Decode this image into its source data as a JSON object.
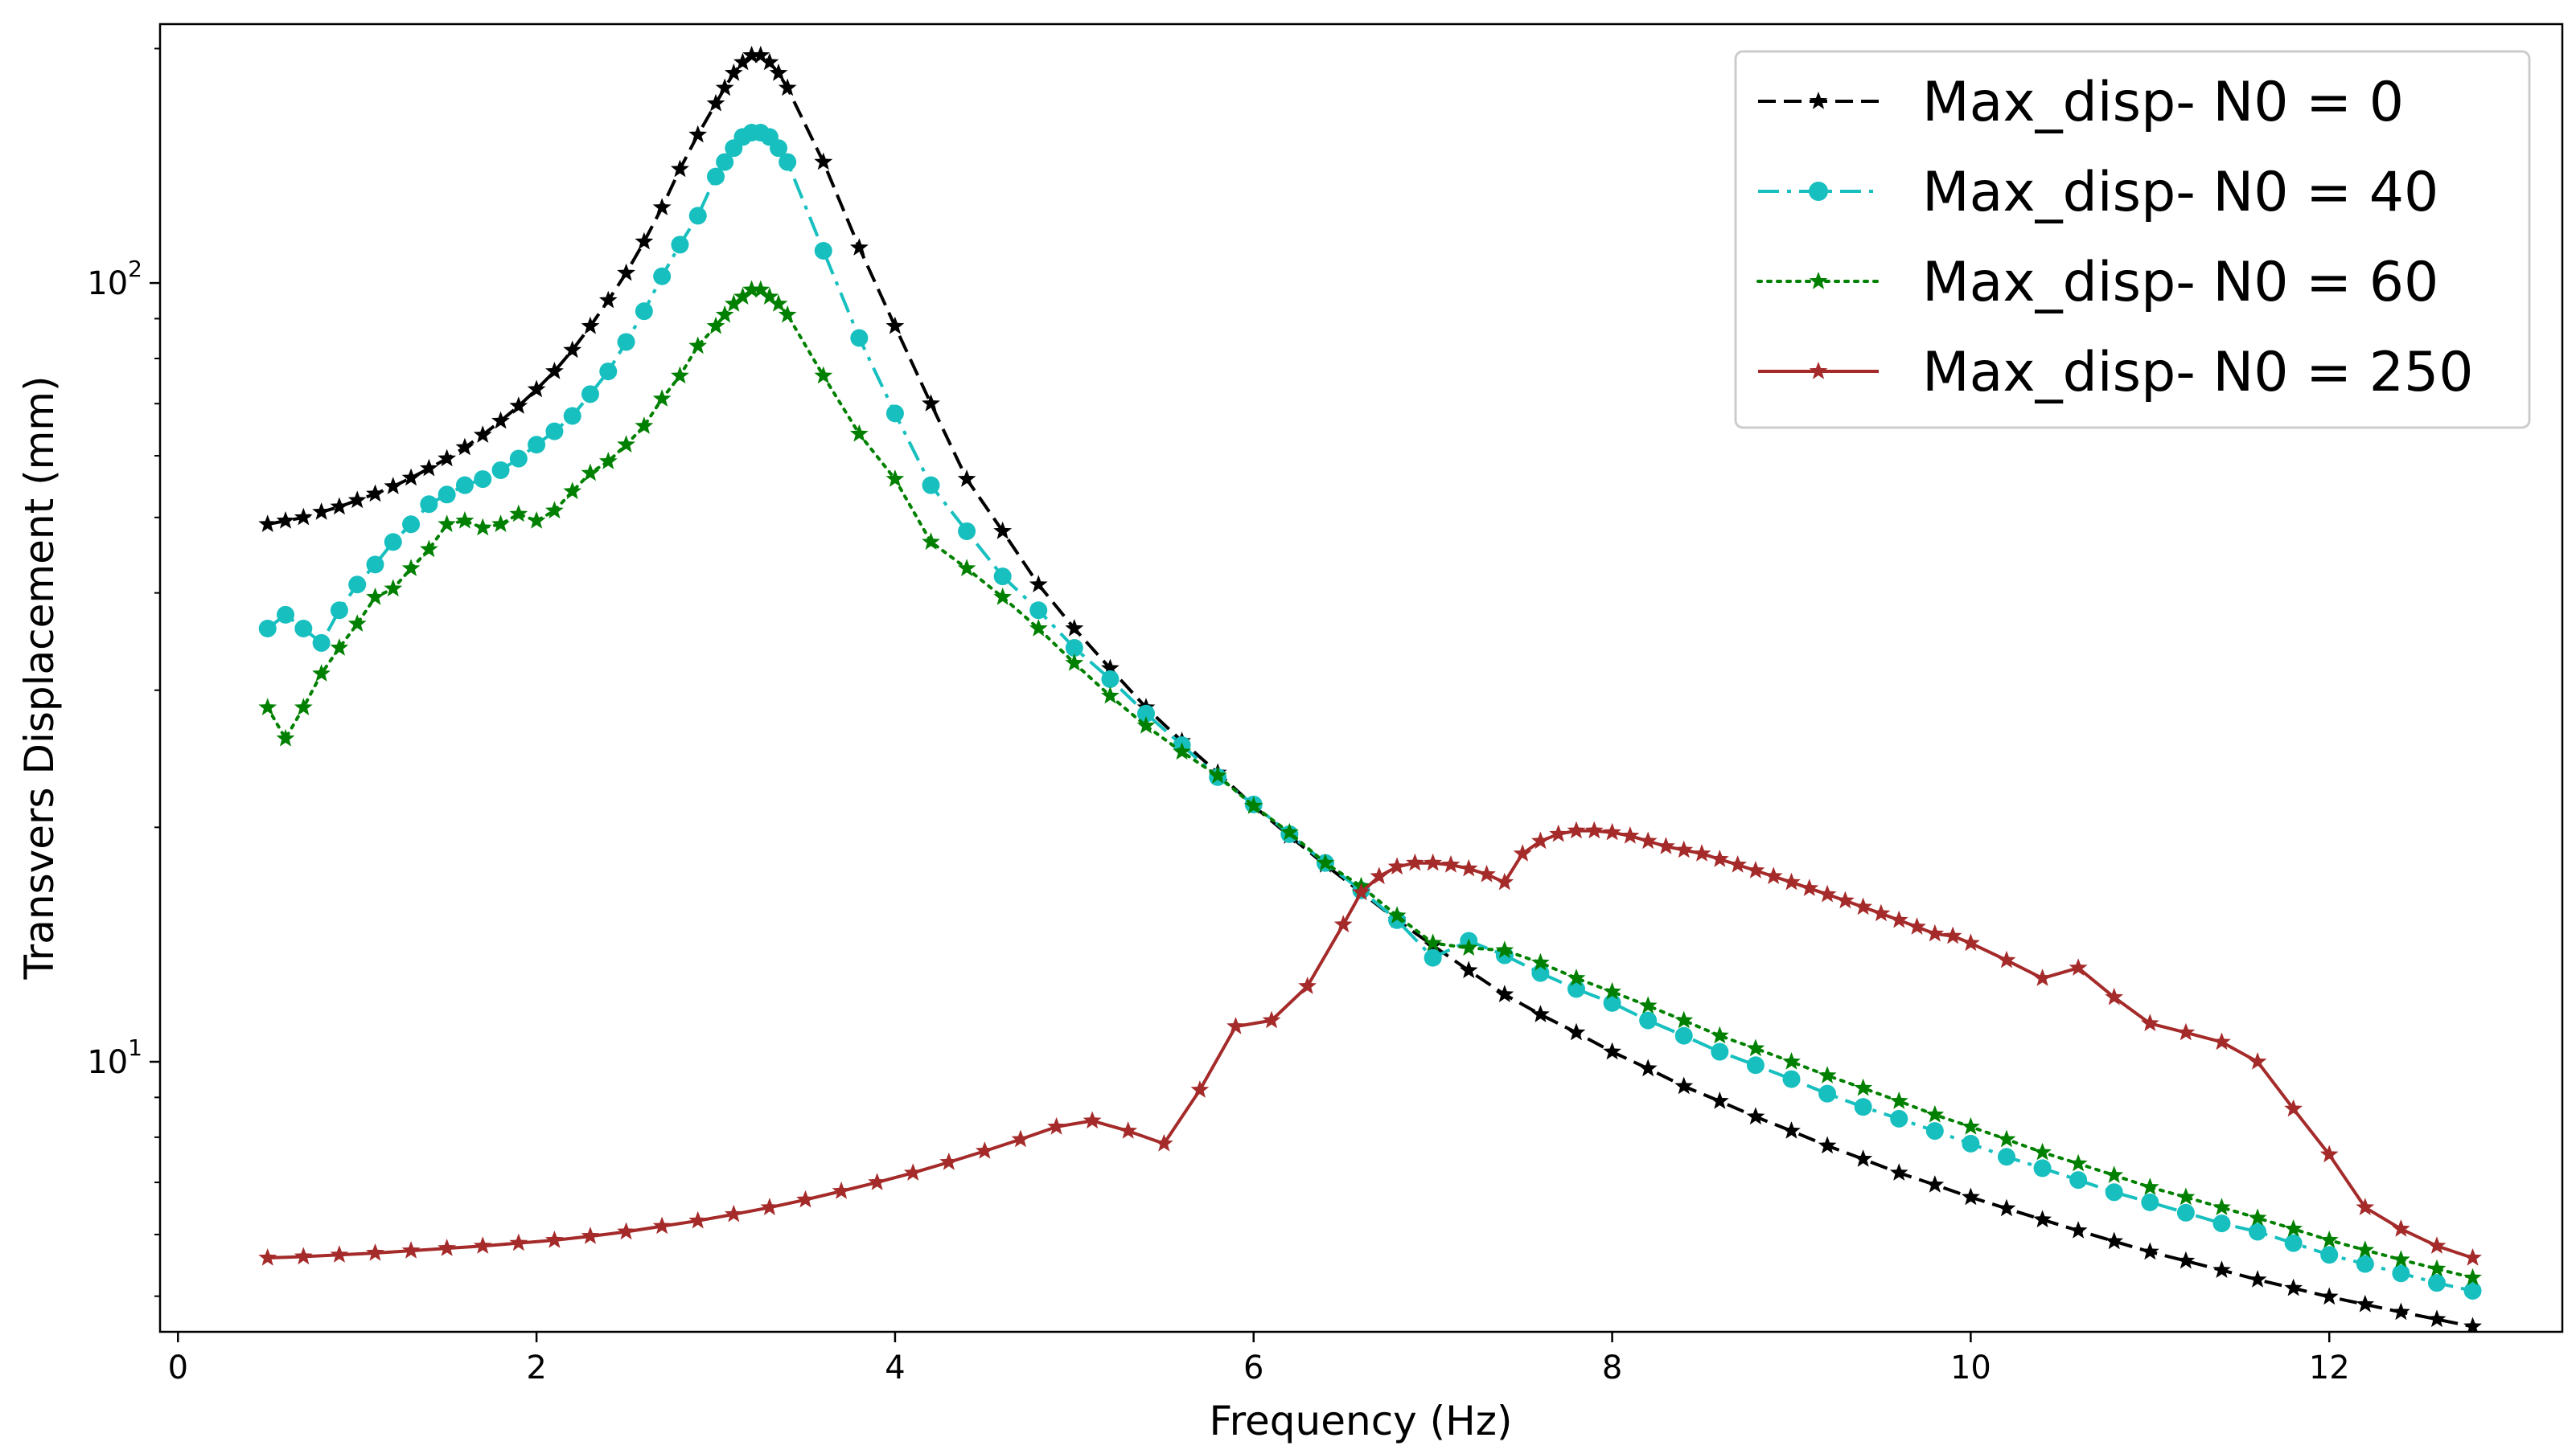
{
  "chart_data": {
    "type": "line",
    "title": "",
    "xlabel": "Frequency (Hz)",
    "ylabel": "Transvers Displacement (mm)",
    "xlim": [
      -0.1,
      13.3
    ],
    "ylim": [
      4.5,
      215
    ],
    "yscale": "log",
    "xticks": [
      0,
      2,
      4,
      6,
      8,
      10,
      12
    ],
    "xtick_labels": [
      "0",
      "2",
      "4",
      "6",
      "8",
      "10",
      "12"
    ],
    "yticks": [
      10,
      100
    ],
    "ytick_labels": [
      {
        "base": "10",
        "exp": "1"
      },
      {
        "base": "10",
        "exp": "2"
      }
    ],
    "legend_position": "top-right",
    "series": [
      {
        "name": "Max_disp- N0 = 0",
        "color": "#000000",
        "line_style": "dashed",
        "marker": "star",
        "x": [
          0.5,
          0.6,
          0.7,
          0.8,
          0.9,
          1.0,
          1.1,
          1.2,
          1.3,
          1.4,
          1.5,
          1.6,
          1.7,
          1.8,
          1.9,
          2.0,
          2.1,
          2.2,
          2.3,
          2.4,
          2.5,
          2.6,
          2.7,
          2.8,
          2.9,
          3.0,
          3.05,
          3.1,
          3.15,
          3.2,
          3.25,
          3.3,
          3.35,
          3.4,
          3.6,
          3.8,
          4.0,
          4.2,
          4.4,
          4.6,
          4.8,
          5.0,
          5.2,
          5.4,
          5.6,
          5.8,
          6.0,
          6.2,
          6.4,
          6.6,
          6.8,
          7.0,
          7.2,
          7.4,
          7.6,
          7.8,
          8.0,
          8.2,
          8.4,
          8.6,
          8.8,
          9.0,
          9.2,
          9.4,
          9.6,
          9.8,
          10.0,
          10.2,
          10.4,
          10.6,
          10.8,
          11.0,
          11.2,
          11.4,
          11.6,
          11.8,
          12.0,
          12.2,
          12.4,
          12.6,
          12.8
        ],
        "values": [
          49.0,
          49.5,
          50.0,
          50.8,
          51.6,
          52.6,
          53.6,
          54.8,
          56.2,
          57.8,
          59.5,
          61.5,
          63.8,
          66.5,
          69.5,
          73.0,
          77.0,
          82.0,
          88.0,
          95.0,
          103.0,
          113.0,
          125.0,
          140.0,
          155.0,
          170.0,
          178.0,
          186.0,
          192.0,
          196.0,
          196.0,
          192.0,
          186.0,
          178.0,
          143.0,
          111.0,
          88.0,
          70.0,
          56.0,
          48.0,
          41.0,
          36.0,
          32.0,
          28.5,
          25.8,
          23.5,
          21.3,
          19.5,
          17.9,
          16.5,
          15.2,
          14.1,
          13.1,
          12.2,
          11.5,
          10.9,
          10.3,
          9.8,
          9.3,
          8.9,
          8.5,
          8.15,
          7.8,
          7.5,
          7.2,
          6.95,
          6.7,
          6.48,
          6.27,
          6.07,
          5.88,
          5.7,
          5.55,
          5.4,
          5.25,
          5.12,
          4.99,
          4.88,
          4.77,
          4.67,
          4.57
        ]
      },
      {
        "name": "Max_disp- N0 = 40",
        "color": "#17BFBF",
        "line_style": "dashdot",
        "marker": "circle",
        "x": [
          0.5,
          0.6,
          0.7,
          0.8,
          0.9,
          1.0,
          1.1,
          1.2,
          1.3,
          1.4,
          1.5,
          1.6,
          1.7,
          1.8,
          1.9,
          2.0,
          2.1,
          2.2,
          2.3,
          2.4,
          2.5,
          2.6,
          2.7,
          2.8,
          2.9,
          3.0,
          3.05,
          3.1,
          3.15,
          3.2,
          3.25,
          3.3,
          3.35,
          3.4,
          3.6,
          3.8,
          4.0,
          4.2,
          4.4,
          4.6,
          4.8,
          5.0,
          5.2,
          5.4,
          5.6,
          5.8,
          6.0,
          6.2,
          6.4,
          6.6,
          6.8,
          7.0,
          7.2,
          7.4,
          7.6,
          7.8,
          8.0,
          8.2,
          8.4,
          8.6,
          8.8,
          9.0,
          9.2,
          9.4,
          9.6,
          9.8,
          10.0,
          10.2,
          10.4,
          10.6,
          10.8,
          11.0,
          11.2,
          11.4,
          11.6,
          11.8,
          12.0,
          12.2,
          12.4,
          12.6,
          12.8
        ],
        "values": [
          36.0,
          37.5,
          36.0,
          34.5,
          38.0,
          41.0,
          43.5,
          46.5,
          49.0,
          52.0,
          53.5,
          55.0,
          56.0,
          57.5,
          59.5,
          62.0,
          64.5,
          67.5,
          72.0,
          77.0,
          84.0,
          92.0,
          102.0,
          112.0,
          122.0,
          137.0,
          143.0,
          149.0,
          154.0,
          156.0,
          156.0,
          154.0,
          149.0,
          143.0,
          110.0,
          85.0,
          68.0,
          55.0,
          48.0,
          42.0,
          38.0,
          34.0,
          31.0,
          28.0,
          25.5,
          23.2,
          21.4,
          19.6,
          18.0,
          16.6,
          15.2,
          13.6,
          14.3,
          13.7,
          13.0,
          12.4,
          11.9,
          11.3,
          10.8,
          10.3,
          9.9,
          9.5,
          9.1,
          8.75,
          8.45,
          8.15,
          7.85,
          7.55,
          7.3,
          7.05,
          6.8,
          6.6,
          6.4,
          6.2,
          6.05,
          5.85,
          5.65,
          5.5,
          5.35,
          5.2,
          5.08
        ]
      },
      {
        "name": "Max_disp- N0 = 60",
        "color": "#008000",
        "line_style": "dotted",
        "marker": "star",
        "x": [
          0.5,
          0.6,
          0.7,
          0.8,
          0.9,
          1.0,
          1.1,
          1.2,
          1.3,
          1.4,
          1.5,
          1.6,
          1.7,
          1.8,
          1.9,
          2.0,
          2.1,
          2.2,
          2.3,
          2.4,
          2.5,
          2.6,
          2.7,
          2.8,
          2.9,
          3.0,
          3.05,
          3.1,
          3.15,
          3.2,
          3.25,
          3.3,
          3.35,
          3.4,
          3.6,
          3.8,
          4.0,
          4.2,
          4.4,
          4.6,
          4.8,
          5.0,
          5.2,
          5.4,
          5.6,
          5.8,
          6.0,
          6.2,
          6.4,
          6.6,
          6.8,
          7.0,
          7.2,
          7.4,
          7.6,
          7.8,
          8.0,
          8.2,
          8.4,
          8.6,
          8.8,
          9.0,
          9.2,
          9.4,
          9.6,
          9.8,
          10.0,
          10.2,
          10.4,
          10.6,
          10.8,
          11.0,
          11.2,
          11.4,
          11.6,
          11.8,
          12.0,
          12.2,
          12.4,
          12.6,
          12.8
        ],
        "values": [
          28.5,
          26.0,
          28.5,
          31.5,
          34.0,
          36.5,
          39.5,
          40.5,
          43.0,
          45.5,
          49.0,
          49.5,
          48.5,
          49.0,
          50.5,
          49.5,
          51.0,
          54.0,
          57.0,
          59.0,
          62.0,
          65.5,
          71.0,
          76.0,
          83.0,
          88.0,
          91.0,
          94.0,
          96.0,
          98.0,
          98.0,
          96.0,
          94.0,
          91.0,
          76.0,
          64.0,
          56.0,
          46.5,
          43.0,
          39.5,
          36.0,
          32.5,
          29.5,
          27.0,
          25.0,
          23.3,
          21.3,
          19.7,
          18.0,
          16.8,
          15.4,
          14.2,
          14.0,
          13.9,
          13.4,
          12.8,
          12.3,
          11.8,
          11.3,
          10.8,
          10.4,
          10.0,
          9.6,
          9.25,
          8.9,
          8.55,
          8.25,
          7.95,
          7.65,
          7.4,
          7.15,
          6.9,
          6.7,
          6.5,
          6.3,
          6.1,
          5.9,
          5.73,
          5.57,
          5.42,
          5.28
        ]
      },
      {
        "name": "Max_disp- N0 = 250",
        "color": "#A52A2A",
        "line_style": "solid",
        "marker": "star",
        "x": [
          0.5,
          0.7,
          0.9,
          1.1,
          1.3,
          1.5,
          1.7,
          1.9,
          2.1,
          2.3,
          2.5,
          2.7,
          2.9,
          3.1,
          3.3,
          3.5,
          3.7,
          3.9,
          4.1,
          4.3,
          4.5,
          4.7,
          4.9,
          5.1,
          5.3,
          5.5,
          5.7,
          5.9,
          6.1,
          6.3,
          6.5,
          6.6,
          6.7,
          6.8,
          6.9,
          7.0,
          7.1,
          7.2,
          7.3,
          7.4,
          7.5,
          7.6,
          7.7,
          7.8,
          7.9,
          8.0,
          8.1,
          8.2,
          8.3,
          8.4,
          8.5,
          8.6,
          8.7,
          8.8,
          8.9,
          9.0,
          9.1,
          9.2,
          9.3,
          9.4,
          9.5,
          9.6,
          9.7,
          9.8,
          9.9,
          10.0,
          10.2,
          10.4,
          10.6,
          10.8,
          11.0,
          11.2,
          11.4,
          11.6,
          11.8,
          12.0,
          12.2,
          12.4,
          12.6,
          12.8
        ],
        "values": [
          5.6,
          5.62,
          5.65,
          5.68,
          5.72,
          5.76,
          5.8,
          5.85,
          5.9,
          5.97,
          6.05,
          6.15,
          6.25,
          6.37,
          6.5,
          6.65,
          6.82,
          7.0,
          7.2,
          7.43,
          7.68,
          7.95,
          8.25,
          8.4,
          8.15,
          7.85,
          9.2,
          11.1,
          11.3,
          12.5,
          15.0,
          16.5,
          17.3,
          17.8,
          18.0,
          18.0,
          17.9,
          17.7,
          17.4,
          17.0,
          18.5,
          19.2,
          19.6,
          19.8,
          19.8,
          19.7,
          19.5,
          19.2,
          18.9,
          18.7,
          18.5,
          18.2,
          17.9,
          17.6,
          17.3,
          17.0,
          16.7,
          16.4,
          16.1,
          15.8,
          15.5,
          15.2,
          14.9,
          14.6,
          14.5,
          14.2,
          13.5,
          12.8,
          13.2,
          12.1,
          11.2,
          10.9,
          10.6,
          10.0,
          8.7,
          7.6,
          6.5,
          6.1,
          5.8,
          5.6
        ]
      }
    ]
  }
}
